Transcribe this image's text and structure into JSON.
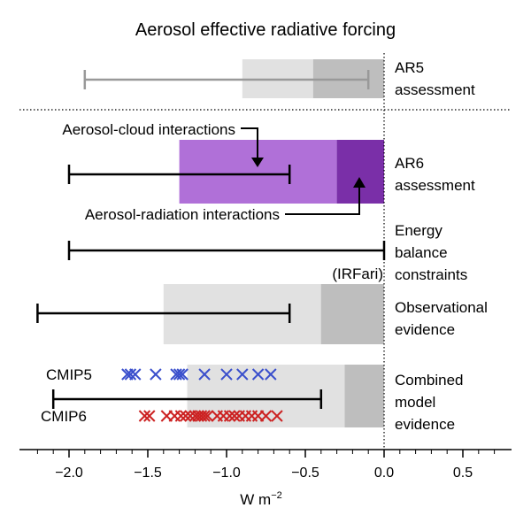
{
  "chart_data": {
    "type": "bar",
    "title": "Aerosol effective radiative forcing",
    "xlabel": "W m",
    "xlabel_exponent": "−2",
    "xlim": [
      -2.3,
      0.8
    ],
    "xticks": [
      {
        "value": -2.0,
        "label": "−2.0"
      },
      {
        "value": -1.5,
        "label": "−1.5"
      },
      {
        "value": -1.0,
        "label": "−1.0"
      },
      {
        "value": -0.5,
        "label": "−0.5"
      },
      {
        "value": 0.0,
        "label": "0.0"
      },
      {
        "value": 0.5,
        "label": "0.5"
      }
    ],
    "colors": {
      "light_grey": "#e1e1e1",
      "dark_grey": "#bebebe",
      "aci_purple": "#b070d8",
      "ari_purple": "#7a2fa8",
      "ar5_range": "#999999",
      "range": "#000000",
      "cmip5": "#3a4fcc",
      "cmip6": "#cc2222",
      "irfari": "#999999"
    },
    "rows": [
      {
        "key": "ar5",
        "label_lines": [
          "AR5",
          "assessment"
        ],
        "total_bar": [
          -0.9,
          0
        ],
        "component_bar": [
          -0.45,
          0
        ],
        "range": [
          -1.9,
          -0.1
        ],
        "range_color": "ar5_range"
      },
      {
        "key": "ar6",
        "label_lines": [
          "AR6",
          "assessment"
        ],
        "aci_bar": [
          -1.3,
          -0.3
        ],
        "ari_bar": [
          -0.3,
          0
        ],
        "range": [
          -2.0,
          -0.6
        ],
        "annotations": {
          "aci_label": "Aerosol-cloud interactions",
          "ari_label": "Aerosol-radiation interactions"
        }
      },
      {
        "key": "energy",
        "label_lines": [
          "Energy",
          "balance",
          "constraints"
        ],
        "range": [
          -2.0,
          0.0
        ],
        "note": "(IRFari)"
      },
      {
        "key": "obs",
        "label_lines": [
          "Observational",
          "evidence"
        ],
        "total_bar": [
          -1.4,
          0
        ],
        "component_bar": [
          -0.4,
          0
        ],
        "range": [
          -2.2,
          -0.6
        ]
      },
      {
        "key": "model",
        "label_lines": [
          "Combined",
          "model",
          "evidence"
        ],
        "total_bar": [
          -1.25,
          0
        ],
        "component_bar": [
          -0.25,
          0
        ],
        "range": [
          -2.1,
          -0.4
        ],
        "cmip5_label": "CMIP5",
        "cmip6_label": "CMIP6",
        "cmip5_values": [
          -1.63,
          -1.61,
          -1.58,
          -1.45,
          -1.32,
          -1.3,
          -1.28,
          -1.14,
          -1.0,
          -0.9,
          -0.8,
          -0.72
        ],
        "cmip6_values": [
          -1.52,
          -1.49,
          -1.38,
          -1.33,
          -1.29,
          -1.26,
          -1.23,
          -1.2,
          -1.18,
          -1.16,
          -1.14,
          -1.12,
          -1.06,
          -1.02,
          -0.98,
          -0.95,
          -0.92,
          -0.88,
          -0.84,
          -0.8,
          -0.75,
          -0.68
        ]
      }
    ]
  }
}
